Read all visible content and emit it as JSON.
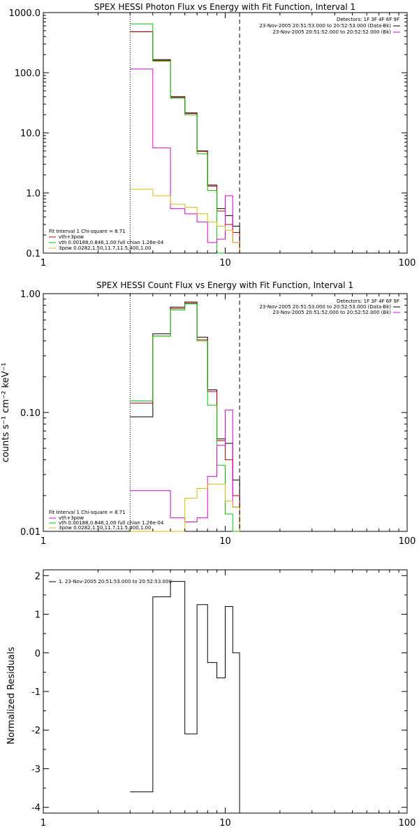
{
  "chart_data": [
    {
      "type": "line",
      "title": "SPEX HESSI Photon Flux vs Energy with Fit Function, Interval 1",
      "xscale": "log",
      "yscale": "log",
      "xlim": [
        1,
        100
      ],
      "ylim": [
        0.1,
        1000
      ],
      "xticks": [
        1,
        10,
        100
      ],
      "xticklabels": [
        "1",
        "10",
        "100"
      ],
      "yticks": [
        0.1,
        1,
        10,
        100,
        1000
      ],
      "yticklabels": [
        "0.1",
        "1.0",
        "10.0",
        "100.0",
        "1000.0"
      ],
      "vlines": [
        {
          "x": 3,
          "style": "dotted"
        },
        {
          "x": 12,
          "style": "dashed"
        }
      ],
      "edges": [
        3,
        4,
        5,
        6,
        7,
        8,
        9,
        10,
        11,
        12
      ],
      "series": [
        {
          "color": "#000000",
          "values": [
            480,
            165,
            40,
            21.5,
            5.0,
            1.35,
            0.55,
            0.42,
            0.28
          ]
        },
        {
          "color": "#cc0000",
          "values": [
            480,
            160,
            39,
            21.0,
            4.9,
            1.3,
            0.5,
            0.3,
            0.22
          ]
        },
        {
          "color": "#00cc00",
          "values": [
            650,
            155,
            38,
            20,
            4.5,
            1.1,
            0.1
          ]
        },
        {
          "color": "#dd00dd",
          "values": [
            115,
            5.6,
            0.55,
            0.45,
            0.33,
            0.15,
            0.17,
            0.9,
            0.15
          ]
        },
        {
          "color": "#ddbb00",
          "values": [
            1.15,
            0.9,
            0.65,
            0.58,
            0.45,
            0.33,
            0.28,
            0.24,
            0.15
          ]
        }
      ],
      "annotations_right": [
        {
          "text": "Detectors: 1F 3F 4F 6F 9F",
          "color": "#000000"
        },
        {
          "text": "23-Nov-2005 20:51:53.000 to 20:52:53.000 (Data-Bk)",
          "color": "#000000"
        },
        {
          "text": "23-Nov-2005 20:51:52.000 to 20:52:52.000 (Bk)",
          "color": "#dd00dd"
        }
      ],
      "legend_left": [
        {
          "text": "Fit Interval 1   Chi-square = 8.71",
          "color": null
        },
        {
          "text": "vth+3pow",
          "color": "#cc0000"
        },
        {
          "text": "vth 0.00188,0.846,1.00  full chian 1.26e-04",
          "color": "#00cc00"
        },
        {
          "text": "3pow 0.0282,1.50,11.7,11.5,400,1.00",
          "color": "#ddbb00"
        }
      ]
    },
    {
      "type": "line",
      "title": "SPEX HESSI Count Flux vs Energy with Fit Function, Interval 1",
      "ylabel": "counts s⁻¹ cm⁻² keV⁻¹",
      "xscale": "log",
      "yscale": "log",
      "xlim": [
        1,
        100
      ],
      "ylim": [
        0.01,
        1
      ],
      "xticks": [
        1,
        10,
        100
      ],
      "xticklabels": [
        "1",
        "10",
        "100"
      ],
      "yticks": [
        0.01,
        0.1,
        1
      ],
      "yticklabels": [
        "0.01",
        "0.10",
        "1.00"
      ],
      "vlines": [
        {
          "x": 3,
          "style": "dotted"
        },
        {
          "x": 12,
          "style": "dashed"
        }
      ],
      "edges": [
        3,
        4,
        5,
        6,
        7,
        8,
        9,
        10,
        11,
        12
      ],
      "series": [
        {
          "color": "#000000",
          "values": [
            0.092,
            0.46,
            0.77,
            0.85,
            0.43,
            0.155,
            0.06,
            0.055,
            0.027
          ]
        },
        {
          "color": "#cc0000",
          "values": [
            0.12,
            0.44,
            0.75,
            0.83,
            0.41,
            0.15,
            0.058,
            0.04,
            0.02
          ]
        },
        {
          "color": "#00cc00",
          "values": [
            0.125,
            0.44,
            0.73,
            0.82,
            0.4,
            0.115,
            0.036,
            0.014,
            0.01
          ]
        },
        {
          "color": "#dd00dd",
          "values": [
            0.022,
            0.022,
            0.013,
            0.012,
            0.013,
            0.029,
            0.053,
            0.105,
            0.016
          ]
        },
        {
          "color": "#ddbb00",
          "values": [
            0.01,
            0.01,
            0.01,
            0.019,
            0.023,
            0.025,
            0.025,
            0.018,
            0.016
          ]
        }
      ],
      "annotations_right": [
        {
          "text": "Detectors: 1F 3F 4F 6F 9F",
          "color": "#000000"
        },
        {
          "text": "23-Nov-2005 20:51:53.000 to 20:52:53.000 (Data-Bk)",
          "color": "#000000"
        },
        {
          "text": "23-Nov-2005 20:51:52.000 to 20:52:52.000 (Bk)",
          "color": "#dd00dd"
        }
      ],
      "legend_left": [
        {
          "text": "Fit Interval 1   Chi-square = 8.71",
          "color": null
        },
        {
          "text": "vth+3pow",
          "color": "#dd00dd"
        },
        {
          "text": "vth 0.00188,0.846,1.00  full chian 1.26e-04",
          "color": "#00cc00"
        },
        {
          "text": "3pow 0.0282,1.50,11.7,11.5,400,1.00",
          "color": "#ddbb00"
        }
      ]
    },
    {
      "type": "line",
      "title": "",
      "ylabel": "Normalized Residuals",
      "xscale": "log",
      "yscale": "linear",
      "xlim": [
        1,
        100
      ],
      "ylim": [
        -4.15,
        2.15
      ],
      "xticks": [
        1,
        10,
        100
      ],
      "xticklabels": [
        "1",
        "10",
        "100"
      ],
      "yticks": [
        -4,
        -3,
        -2,
        -1,
        0,
        1,
        2
      ],
      "yticklabels": [
        "-4",
        "-3",
        "-2",
        "-1",
        "0",
        "1",
        "2"
      ],
      "edges": [
        3,
        4,
        5,
        6,
        7,
        8,
        9,
        10,
        11,
        12
      ],
      "series": [
        {
          "color": "#000000",
          "values": [
            -3.6,
            1.45,
            1.85,
            -2.1,
            1.25,
            -0.25,
            -0.65,
            1.2,
            0
          ]
        }
      ],
      "legend_left": [
        {
          "text": "1. 23-Nov-2005 20:51:53.000 to 20:52:53.000",
          "color": "#000000"
        }
      ]
    }
  ]
}
